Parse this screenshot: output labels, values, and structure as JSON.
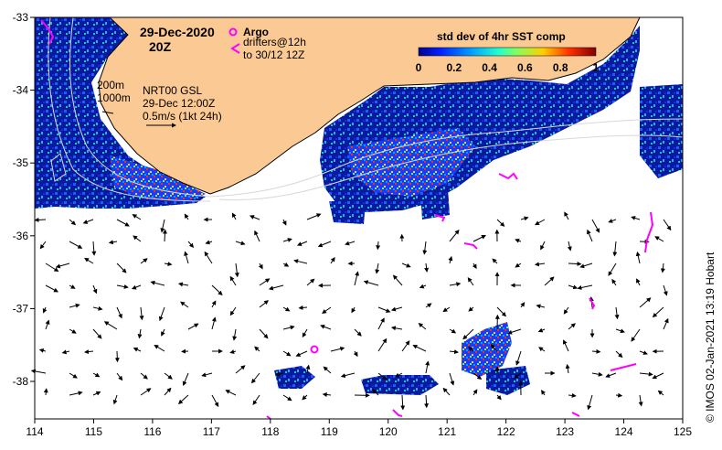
{
  "map": {
    "date_line1": "29-Dec-2020",
    "date_line2": "20Z",
    "legend_argo": "Argo",
    "legend_drifters_1": "drifters@12h",
    "legend_drifters_2": "to 30/12 12Z",
    "colorbar_title": "std dev of 4hr SST comp",
    "colorbar_ticks": [
      "0",
      "0.2",
      "0.4",
      "0.6",
      "0.8",
      "1"
    ],
    "contour_200": "200m",
    "contour_1000": "1000m",
    "current_line1": "NRT00 GSL",
    "current_line2": "29-Dec 12:00Z",
    "current_line3": "0.5m/s (1kt 24h)",
    "credit": "© IMOS 02-Jan-2021 13:19 Hobart",
    "x_ticks": [
      "114",
      "115",
      "116",
      "117",
      "118",
      "119",
      "120",
      "121",
      "122",
      "123",
      "124",
      "125"
    ],
    "y_ticks": [
      "-33",
      "-34",
      "-35",
      "-36",
      "-37",
      "-38"
    ],
    "colors": {
      "land": "#fbc993",
      "argo": "#ff00ff",
      "drifter": "#ff00ff",
      "ocean_low": "#0a1a9a",
      "ocean_high": "#ff2000"
    }
  }
}
